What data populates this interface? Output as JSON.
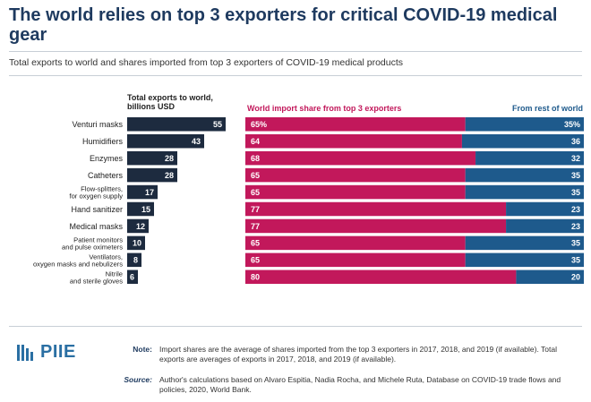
{
  "title": "The world relies on top 3 exporters for critical COVID-19 medical gear",
  "subtitle": "Total exports to world and shares imported from top 3 exporters of COVID-19 medical products",
  "colors": {
    "navy": "#1d2b3f",
    "top3": "#c2185b",
    "rest": "#1e5a8c",
    "title": "#1e3a5f"
  },
  "chart_data": {
    "type": "bar",
    "categories": [
      "Venturi masks",
      "Humidifiers",
      "Enzymes",
      "Catheters",
      "Flow-splitters, for oxygen supply",
      "Hand sanitizer",
      "Medical masks",
      "Patient monitors and pulse oximeters",
      "Ventilators, oxygen masks and nebulizers",
      "Nitrile and sterile gloves"
    ],
    "exports": {
      "header": "Total exports to world, billions USD",
      "values": [
        55,
        43,
        28,
        28,
        17,
        15,
        12,
        10,
        8,
        6
      ],
      "xlim": [
        0,
        60
      ]
    },
    "shares": {
      "top3_header": "World import share from top 3 exporters",
      "rest_header": "From rest of world",
      "top3": [
        65,
        64,
        68,
        65,
        65,
        77,
        77,
        65,
        65,
        80
      ],
      "rest": [
        35,
        36,
        32,
        35,
        35,
        23,
        23,
        35,
        35,
        20
      ],
      "top3_labels": [
        "65%",
        "64",
        "68",
        "65",
        "65",
        "77",
        "77",
        "65",
        "65",
        "80"
      ],
      "rest_labels": [
        "35%",
        "36",
        "32",
        "35",
        "35",
        "23",
        "23",
        "35",
        "35",
        "20"
      ],
      "xlim": [
        0,
        100
      ]
    }
  },
  "footer": {
    "logo": "PIIE",
    "note_label": "Note:",
    "note_text": "Import shares are the average of shares imported from the top 3 exporters in 2017, 2018, and 2019 (if available). Total exports are averages of exports in 2017, 2018, and 2019 (if available).",
    "source_label": "Source:",
    "source_text": "Author's calculations based on Alvaro Espitia, Nadia Rocha, and Michele Ruta, Database on COVID-19 trade flows and policies, 2020, World Bank."
  }
}
